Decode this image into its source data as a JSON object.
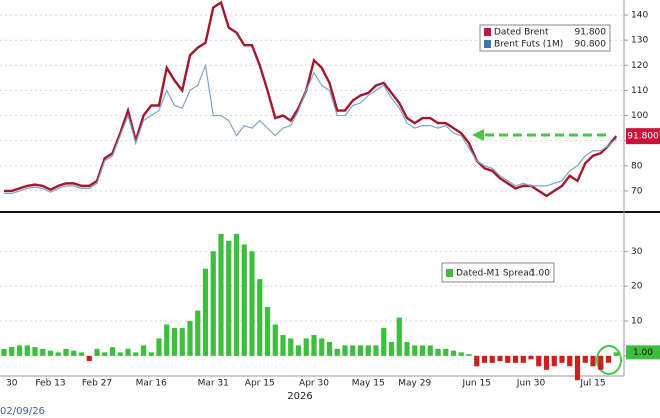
{
  "chart_data": [
    {
      "type": "line",
      "series": [
        {
          "name": "Dated Brent",
          "color": "#a3182c",
          "legend_label": "91.800",
          "values": [
            70,
            70,
            71,
            72,
            72.5,
            72,
            70.5,
            72,
            73,
            73,
            72,
            72,
            74,
            83,
            85,
            93,
            102,
            90,
            100,
            104,
            104,
            119,
            114,
            110,
            124,
            127,
            129,
            143,
            145,
            135,
            133,
            128,
            128,
            120,
            110,
            99,
            100,
            98,
            103,
            110,
            122,
            119,
            113,
            102,
            102,
            106,
            108,
            109,
            112,
            113,
            109,
            105,
            99,
            97,
            99,
            99,
            97,
            97,
            95,
            93,
            89,
            82,
            79,
            78,
            75,
            73,
            71,
            72,
            72,
            70,
            68,
            70,
            72,
            76,
            74,
            81,
            84,
            85,
            88,
            91.8
          ]
        },
        {
          "name": "Brent Futs (1M)",
          "color": "#7fa6bf",
          "legend_label": "90.800",
          "values": [
            69,
            69,
            70,
            71,
            71.5,
            71,
            69.5,
            71,
            72,
            72,
            71,
            71,
            73,
            82,
            84,
            92,
            100,
            89,
            98,
            100,
            102,
            110,
            104,
            103,
            110,
            112,
            120,
            100,
            100,
            98,
            92,
            96,
            95,
            98,
            95,
            92,
            95,
            96,
            102,
            110,
            117,
            112,
            110,
            100,
            100,
            104,
            105,
            108,
            110,
            112,
            107,
            103,
            97,
            95,
            96,
            96,
            95,
            96,
            93,
            92,
            87,
            82,
            80,
            79,
            76,
            74,
            72,
            73,
            72,
            72,
            72,
            73,
            74,
            78,
            80,
            84,
            86,
            86,
            88,
            90.8
          ]
        }
      ],
      "ylim": [
        62,
        146
      ],
      "yticks": [
        70,
        80,
        90,
        100,
        110,
        120,
        130,
        140
      ],
      "grid": true,
      "legend": "upper right"
    },
    {
      "type": "bar",
      "categories": [
        null,
        "30",
        null,
        null,
        null,
        null,
        "Feb 13",
        null,
        null,
        null,
        null,
        null,
        "Feb 27",
        null,
        null,
        null,
        null,
        null,
        null,
        "Mar 16",
        null,
        null,
        null,
        null,
        null,
        null,
        null,
        "Mar 31",
        null,
        null,
        null,
        null,
        null,
        "Apr 15",
        null,
        null,
        null,
        null,
        null,
        null,
        "Apr 30",
        null,
        null,
        null,
        null,
        null,
        null,
        "May 15",
        null,
        null,
        null,
        null,
        null,
        "May 29",
        null,
        null,
        null,
        null,
        null,
        null,
        null,
        "Jun 15",
        null,
        null,
        null,
        null,
        null,
        null,
        "Jun 30",
        null,
        null,
        null,
        null,
        null,
        null,
        null,
        "Jul 15",
        null,
        null,
        null
      ],
      "series": [
        {
          "name": "Dated-M1 Spread",
          "legend_label": "1.00",
          "values": [
            2,
            2.5,
            3,
            3,
            2.5,
            2,
            1.5,
            1,
            2,
            1.5,
            1,
            -1.5,
            2,
            1,
            2.5,
            1,
            2,
            1,
            3,
            1,
            5,
            9,
            8,
            8,
            10,
            13,
            25,
            30,
            35,
            33,
            35,
            32,
            30,
            22,
            14,
            9,
            6,
            5,
            3,
            5,
            6,
            5,
            4,
            2,
            3,
            3,
            3,
            3,
            3,
            8,
            4,
            11,
            4,
            3,
            3,
            3,
            2,
            2,
            1.5,
            1,
            0.5,
            -3,
            -2,
            -2,
            -1.5,
            -2,
            -2,
            -2,
            -1,
            -3,
            -4,
            -3,
            -2,
            -3,
            -7,
            -2,
            -3,
            -4,
            -2,
            1
          ]
        }
      ],
      "positive_color": "#3cbf3c",
      "negative_color": "#cc1f1f",
      "ylim": [
        -5.5,
        41
      ],
      "yticks": [
        0,
        10,
        20,
        30
      ],
      "grid": true,
      "legend": "upper right",
      "annotations": [
        "2026",
        "02/09/26"
      ]
    }
  ]
}
